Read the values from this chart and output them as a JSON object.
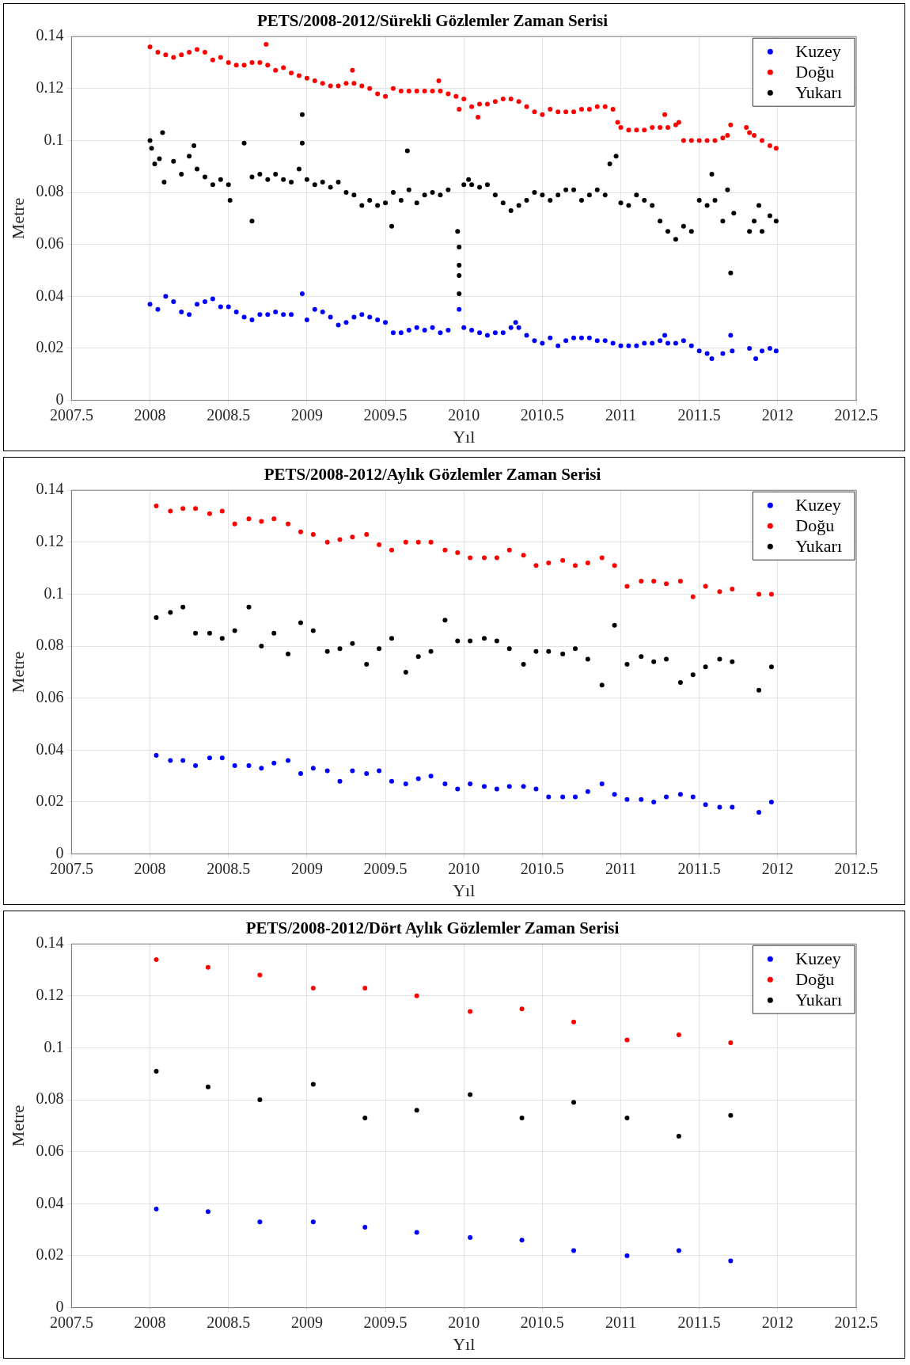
{
  "chart_data": [
    {
      "type": "scatter",
      "title": "PETS/2008-2012/Sürekli Gözlemler Zaman Serisi",
      "xlabel": "Yıl",
      "ylabel": "Metre",
      "xlim": [
        2007.5,
        2012.5
      ],
      "xticks": [
        2007.5,
        2008,
        2008.5,
        2009,
        2009.5,
        2010,
        2010.5,
        2011,
        2011.5,
        2012,
        2012.5
      ],
      "ylim": [
        0,
        0.14
      ],
      "yticks": [
        0,
        0.02,
        0.04,
        0.06,
        0.08,
        0.1,
        0.12,
        0.14
      ],
      "grid": true,
      "legend": "top right",
      "marker": "circle",
      "series": [
        {
          "name": "Kuzey",
          "color": "#0000ff",
          "x": [
            2008.0,
            2008.05,
            2008.1,
            2008.15,
            2008.2,
            2008.25,
            2008.3,
            2008.35,
            2008.4,
            2008.45,
            2008.5,
            2008.55,
            2008.6,
            2008.65,
            2008.7,
            2008.75,
            2008.8,
            2008.85,
            2008.9,
            2008.97,
            2009.0,
            2009.05,
            2009.1,
            2009.15,
            2009.2,
            2009.25,
            2009.3,
            2009.35,
            2009.4,
            2009.45,
            2009.5,
            2009.55,
            2009.6,
            2009.65,
            2009.7,
            2009.75,
            2009.8,
            2009.85,
            2009.9,
            2009.97,
            2010.0,
            2010.05,
            2010.1,
            2010.15,
            2010.2,
            2010.25,
            2010.3,
            2010.33,
            2010.35,
            2010.4,
            2010.45,
            2010.5,
            2010.55,
            2010.6,
            2010.65,
            2010.7,
            2010.75,
            2010.8,
            2010.85,
            2010.9,
            2010.95,
            2011.0,
            2011.05,
            2011.1,
            2011.15,
            2011.2,
            2011.25,
            2011.28,
            2011.3,
            2011.35,
            2011.4,
            2011.45,
            2011.5,
            2011.55,
            2011.58,
            2011.65,
            2011.7,
            2011.71,
            2011.82,
            2011.86,
            2011.9,
            2011.95,
            2011.99
          ],
          "values": [
            0.037,
            0.035,
            0.04,
            0.038,
            0.034,
            0.033,
            0.037,
            0.038,
            0.039,
            0.036,
            0.036,
            0.034,
            0.032,
            0.031,
            0.033,
            0.033,
            0.034,
            0.033,
            0.033,
            0.041,
            0.031,
            0.035,
            0.034,
            0.032,
            0.029,
            0.03,
            0.032,
            0.033,
            0.032,
            0.031,
            0.03,
            0.026,
            0.026,
            0.027,
            0.028,
            0.027,
            0.028,
            0.026,
            0.027,
            0.035,
            0.028,
            0.027,
            0.026,
            0.025,
            0.026,
            0.026,
            0.028,
            0.03,
            0.028,
            0.025,
            0.023,
            0.022,
            0.024,
            0.021,
            0.023,
            0.024,
            0.024,
            0.024,
            0.023,
            0.023,
            0.022,
            0.021,
            0.021,
            0.021,
            0.022,
            0.022,
            0.023,
            0.025,
            0.022,
            0.022,
            0.023,
            0.021,
            0.019,
            0.018,
            0.016,
            0.018,
            0.025,
            0.019,
            0.02,
            0.016,
            0.019,
            0.02,
            0.019
          ]
        },
        {
          "name": "Doğu",
          "color": "#ff0000",
          "x": [
            2008.0,
            2008.05,
            2008.1,
            2008.15,
            2008.2,
            2008.25,
            2008.3,
            2008.35,
            2008.4,
            2008.45,
            2008.5,
            2008.55,
            2008.6,
            2008.65,
            2008.7,
            2008.74,
            2008.75,
            2008.8,
            2008.85,
            2008.9,
            2008.95,
            2009.0,
            2009.05,
            2009.1,
            2009.15,
            2009.2,
            2009.25,
            2009.29,
            2009.3,
            2009.35,
            2009.4,
            2009.45,
            2009.5,
            2009.55,
            2009.6,
            2009.65,
            2009.7,
            2009.75,
            2009.8,
            2009.84,
            2009.85,
            2009.9,
            2009.95,
            2009.97,
            2010.0,
            2010.05,
            2010.09,
            2010.1,
            2010.15,
            2010.2,
            2010.25,
            2010.3,
            2010.35,
            2010.4,
            2010.45,
            2010.5,
            2010.55,
            2010.6,
            2010.65,
            2010.7,
            2010.75,
            2010.8,
            2010.85,
            2010.9,
            2010.95,
            2010.98,
            2011.0,
            2011.05,
            2011.1,
            2011.15,
            2011.2,
            2011.25,
            2011.28,
            2011.3,
            2011.35,
            2011.37,
            2011.4,
            2011.45,
            2011.5,
            2011.55,
            2011.6,
            2011.65,
            2011.68,
            2011.7,
            2011.8,
            2011.82,
            2011.85,
            2011.9,
            2011.95,
            2011.99
          ],
          "values": [
            0.136,
            0.134,
            0.133,
            0.132,
            0.133,
            0.134,
            0.135,
            0.134,
            0.131,
            0.132,
            0.13,
            0.129,
            0.129,
            0.13,
            0.13,
            0.137,
            0.129,
            0.127,
            0.128,
            0.126,
            0.125,
            0.124,
            0.123,
            0.122,
            0.121,
            0.121,
            0.122,
            0.127,
            0.122,
            0.121,
            0.12,
            0.118,
            0.117,
            0.12,
            0.119,
            0.119,
            0.119,
            0.119,
            0.119,
            0.123,
            0.119,
            0.118,
            0.117,
            0.112,
            0.116,
            0.113,
            0.109,
            0.114,
            0.114,
            0.115,
            0.116,
            0.116,
            0.115,
            0.113,
            0.111,
            0.11,
            0.112,
            0.111,
            0.111,
            0.111,
            0.112,
            0.112,
            0.113,
            0.113,
            0.112,
            0.107,
            0.105,
            0.104,
            0.104,
            0.104,
            0.105,
            0.105,
            0.11,
            0.105,
            0.106,
            0.107,
            0.1,
            0.1,
            0.1,
            0.1,
            0.1,
            0.101,
            0.102,
            0.106,
            0.105,
            0.103,
            0.102,
            0.1,
            0.098,
            0.097
          ]
        },
        {
          "name": "Yukarı",
          "color": "#000000",
          "x": [
            2008.0,
            2008.01,
            2008.03,
            2008.06,
            2008.08,
            2008.09,
            2008.15,
            2008.2,
            2008.25,
            2008.28,
            2008.3,
            2008.35,
            2008.4,
            2008.45,
            2008.5,
            2008.51,
            2008.6,
            2008.65,
            2008.65,
            2008.7,
            2008.75,
            2008.8,
            2008.85,
            2008.9,
            2008.95,
            2008.97,
            2008.97,
            2009.0,
            2009.05,
            2009.1,
            2009.15,
            2009.2,
            2009.25,
            2009.3,
            2009.35,
            2009.4,
            2009.45,
            2009.5,
            2009.54,
            2009.55,
            2009.6,
            2009.64,
            2009.65,
            2009.7,
            2009.75,
            2009.8,
            2009.85,
            2009.9,
            2009.96,
            2009.97,
            2009.97,
            2009.97,
            2009.97,
            2010.0,
            2010.03,
            2010.05,
            2010.1,
            2010.15,
            2010.2,
            2010.25,
            2010.3,
            2010.35,
            2010.4,
            2010.45,
            2010.5,
            2010.55,
            2010.6,
            2010.65,
            2010.7,
            2010.75,
            2010.8,
            2010.85,
            2010.9,
            2010.93,
            2010.97,
            2011.0,
            2011.05,
            2011.1,
            2011.15,
            2011.2,
            2011.25,
            2011.3,
            2011.35,
            2011.4,
            2011.45,
            2011.5,
            2011.55,
            2011.58,
            2011.6,
            2011.65,
            2011.68,
            2011.7,
            2011.72,
            2011.82,
            2011.85,
            2011.88,
            2011.9,
            2011.95,
            2011.99
          ],
          "values": [
            0.1,
            0.097,
            0.091,
            0.093,
            0.103,
            0.084,
            0.092,
            0.087,
            0.094,
            0.098,
            0.089,
            0.086,
            0.083,
            0.085,
            0.083,
            0.077,
            0.099,
            0.069,
            0.086,
            0.087,
            0.085,
            0.087,
            0.085,
            0.084,
            0.089,
            0.11,
            0.099,
            0.085,
            0.083,
            0.084,
            0.082,
            0.084,
            0.08,
            0.079,
            0.075,
            0.077,
            0.075,
            0.076,
            0.067,
            0.08,
            0.077,
            0.096,
            0.081,
            0.076,
            0.079,
            0.08,
            0.079,
            0.081,
            0.065,
            0.059,
            0.052,
            0.048,
            0.041,
            0.083,
            0.085,
            0.083,
            0.082,
            0.083,
            0.079,
            0.076,
            0.073,
            0.075,
            0.077,
            0.08,
            0.079,
            0.077,
            0.079,
            0.081,
            0.081,
            0.077,
            0.079,
            0.081,
            0.079,
            0.091,
            0.094,
            0.076,
            0.075,
            0.079,
            0.077,
            0.075,
            0.069,
            0.065,
            0.062,
            0.067,
            0.065,
            0.077,
            0.075,
            0.087,
            0.077,
            0.069,
            0.081,
            0.049,
            0.072,
            0.065,
            0.069,
            0.075,
            0.065,
            0.071,
            0.069
          ]
        }
      ]
    },
    {
      "type": "scatter",
      "title": "PETS/2008-2012/Aylık Gözlemler Zaman Serisi",
      "xlabel": "Yıl",
      "ylabel": "Metre",
      "xlim": [
        2007.5,
        2012.5
      ],
      "xticks": [
        2007.5,
        2008,
        2008.5,
        2009,
        2009.5,
        2010,
        2010.5,
        2011,
        2011.5,
        2012,
        2012.5
      ],
      "ylim": [
        0,
        0.14
      ],
      "yticks": [
        0,
        0.02,
        0.04,
        0.06,
        0.08,
        0.1,
        0.12,
        0.14
      ],
      "grid": true,
      "legend": "top right",
      "marker": "circle",
      "x": [
        2008.04,
        2008.13,
        2008.21,
        2008.29,
        2008.38,
        2008.46,
        2008.54,
        2008.63,
        2008.71,
        2008.79,
        2008.88,
        2008.96,
        2009.04,
        2009.13,
        2009.21,
        2009.29,
        2009.38,
        2009.46,
        2009.54,
        2009.63,
        2009.71,
        2009.79,
        2009.88,
        2009.96,
        2010.04,
        2010.13,
        2010.21,
        2010.29,
        2010.38,
        2010.46,
        2010.54,
        2010.63,
        2010.71,
        2010.79,
        2010.88,
        2010.96,
        2011.04,
        2011.13,
        2011.21,
        2011.29,
        2011.38,
        2011.46,
        2011.54,
        2011.63,
        2011.71,
        2011.79,
        2011.88,
        2011.96
      ],
      "series": [
        {
          "name": "Kuzey",
          "color": "#0000ff",
          "values": [
            0.038,
            0.036,
            0.036,
            0.034,
            0.037,
            0.037,
            0.034,
            0.034,
            0.033,
            0.035,
            0.036,
            0.031,
            0.033,
            0.032,
            0.028,
            0.032,
            0.031,
            0.032,
            0.028,
            0.027,
            0.029,
            0.03,
            0.027,
            0.025,
            0.027,
            0.026,
            0.025,
            0.026,
            0.026,
            0.025,
            0.022,
            0.022,
            0.022,
            0.024,
            0.027,
            0.023,
            0.021,
            0.021,
            0.02,
            0.022,
            0.023,
            0.022,
            0.019,
            0.018,
            0.018,
            null,
            0.016,
            0.02
          ]
        },
        {
          "name": "Doğu",
          "color": "#ff0000",
          "values": [
            0.134,
            0.132,
            0.133,
            0.133,
            0.131,
            0.132,
            0.127,
            0.129,
            0.128,
            0.129,
            0.127,
            0.124,
            0.123,
            0.12,
            0.121,
            0.122,
            0.123,
            0.119,
            0.117,
            0.12,
            0.12,
            0.12,
            0.117,
            0.116,
            0.114,
            0.114,
            0.114,
            0.117,
            0.115,
            0.111,
            0.112,
            0.113,
            0.111,
            0.112,
            0.114,
            0.111,
            0.103,
            0.105,
            0.105,
            0.104,
            0.105,
            0.099,
            0.103,
            0.101,
            0.102,
            null,
            0.1,
            0.1
          ]
        },
        {
          "name": "Yukarı",
          "color": "#000000",
          "values": [
            0.091,
            0.093,
            0.095,
            0.085,
            0.085,
            0.083,
            0.086,
            0.095,
            0.08,
            0.085,
            0.077,
            0.089,
            0.086,
            0.078,
            0.079,
            0.081,
            0.073,
            0.079,
            0.083,
            0.07,
            0.076,
            0.078,
            0.09,
            0.082,
            0.082,
            0.083,
            0.082,
            0.079,
            0.073,
            0.078,
            0.078,
            0.077,
            0.079,
            0.075,
            0.065,
            0.088,
            0.073,
            0.076,
            0.074,
            0.075,
            0.066,
            0.069,
            0.072,
            0.075,
            0.074,
            null,
            0.063,
            0.072
          ]
        }
      ]
    },
    {
      "type": "scatter",
      "title": "PETS/2008-2012/Dört Aylık Gözlemler Zaman Serisi",
      "xlabel": "Yıl",
      "ylabel": "Metre",
      "xlim": [
        2007.5,
        2012.5
      ],
      "xticks": [
        2007.5,
        2008,
        2008.5,
        2009,
        2009.5,
        2010,
        2010.5,
        2011,
        2011.5,
        2012,
        2012.5
      ],
      "ylim": [
        0,
        0.14
      ],
      "yticks": [
        0,
        0.02,
        0.04,
        0.06,
        0.08,
        0.1,
        0.12,
        0.14
      ],
      "grid": true,
      "legend": "top right",
      "marker": "circle",
      "x": [
        2008.04,
        2008.37,
        2008.7,
        2009.04,
        2009.37,
        2009.7,
        2010.04,
        2010.37,
        2010.7,
        2011.04,
        2011.37,
        2011.7
      ],
      "series": [
        {
          "name": "Kuzey",
          "color": "#0000ff",
          "values": [
            0.038,
            0.037,
            0.033,
            0.033,
            0.031,
            0.029,
            0.027,
            0.026,
            0.022,
            0.02,
            0.022,
            0.018
          ]
        },
        {
          "name": "Doğu",
          "color": "#ff0000",
          "values": [
            0.134,
            0.131,
            0.128,
            0.123,
            0.123,
            0.12,
            0.114,
            0.115,
            0.11,
            0.103,
            0.105,
            0.102
          ]
        },
        {
          "name": "Yukarı",
          "color": "#000000",
          "values": [
            0.091,
            0.085,
            0.08,
            0.086,
            0.073,
            0.076,
            0.082,
            0.073,
            0.079,
            0.073,
            0.066,
            0.074
          ]
        }
      ]
    }
  ]
}
